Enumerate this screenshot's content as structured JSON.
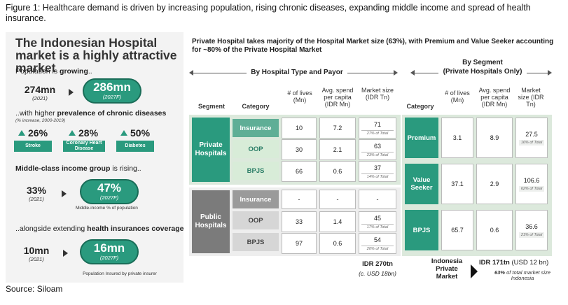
{
  "caption": "Figure 1: Healthcare demand is driven by increasing population, rising chronic diseases, expanding middle income and spread of health insurance.",
  "source": "Source: Siloam",
  "left": {
    "title": "The Indonesian Hospital market is a highly attractive market",
    "population": {
      "lead": "Population is ",
      "lead_bold": "growing",
      "lead_end": "..",
      "from": "274mn",
      "from_year": "(2021)",
      "to": "286mn",
      "to_year": "(2027F)"
    },
    "chronic": {
      "lead": "..with higher ",
      "lead_bold": "prevalence of chronic diseases",
      "note": "(% increase, 2000-2019)",
      "items": [
        {
          "pct": "26%",
          "label": "Stroke"
        },
        {
          "pct": "28%",
          "label": "Coronary Heart Disease"
        },
        {
          "pct": "50%",
          "label": "Diabetes"
        }
      ]
    },
    "middle": {
      "lead_bold": "Middle-class income group",
      "lead": " is rising..",
      "from": "33%",
      "from_year": "(2021)",
      "to": "47%",
      "to_year": "(2027F)",
      "note": "Middle-income % of population"
    },
    "insurance": {
      "lead": "..alongside extending ",
      "lead_bold": "health insurances coverage",
      "from": "10mn",
      "from_year": "(2021)",
      "to": "16mn",
      "to_year": "(2027F)",
      "note": "Population Insured by private insurer"
    }
  },
  "right": {
    "title": "Private Hospital takes majority of the Hospital Market size (63%), with Premium and Value Seeker accounting for ~80% of the Private Hospital Market",
    "section1": "By Hospital Type and Payor",
    "section2_line1": "By Segment",
    "section2_line2": "(Private Hospitals Only)",
    "headers": {
      "segment": "Segment",
      "category": "Category",
      "lives": "# of lives (Mn)",
      "spend": "Avg. spend per capita (IDR Mn)",
      "market": "Market size (IDR Tn)"
    },
    "private": {
      "name": "Private Hospitals",
      "rows": [
        {
          "category": "Insurance",
          "lives": "10",
          "spend": "7.2",
          "market": "71",
          "share": "27% of Total"
        },
        {
          "category": "OOP",
          "lives": "30",
          "spend": "2.1",
          "market": "63",
          "share": "23% of Total"
        },
        {
          "category": "BPJS",
          "lives": "66",
          "spend": "0.6",
          "market": "37",
          "share": "14% of Total"
        }
      ]
    },
    "public": {
      "name": "Public Hospitals",
      "rows": [
        {
          "category": "Insurance",
          "lives": "-",
          "spend": "-",
          "market": "-",
          "share": ""
        },
        {
          "category": "OOP",
          "lives": "33",
          "spend": "1.4",
          "market": "45",
          "share": "17% of Total"
        },
        {
          "category": "BPJS",
          "lives": "97",
          "spend": "0.6",
          "market": "54",
          "share": "20% of Total"
        }
      ]
    },
    "total": {
      "value": "IDR 270tn",
      "usd": "(c. USD 18bn)"
    },
    "segments": [
      {
        "category": "Premium",
        "lives": "3.1",
        "spend": "8.9",
        "market": "27.5",
        "share": "16% of Total"
      },
      {
        "category": "Value Seeker",
        "lives": "37.1",
        "spend": "2.9",
        "market": "106.6",
        "share": "62% of Total"
      },
      {
        "category": "BPJS",
        "lives": "65.7",
        "spend": "0.6",
        "market": "36.6",
        "share": "21% of Total"
      }
    ],
    "footer": {
      "label": "Indonesia Private Market",
      "value": "IDR 171tn",
      "usd": " (USD 12 bn)",
      "pct": "63%",
      "pct_note": " of total market size Indonesia"
    }
  }
}
